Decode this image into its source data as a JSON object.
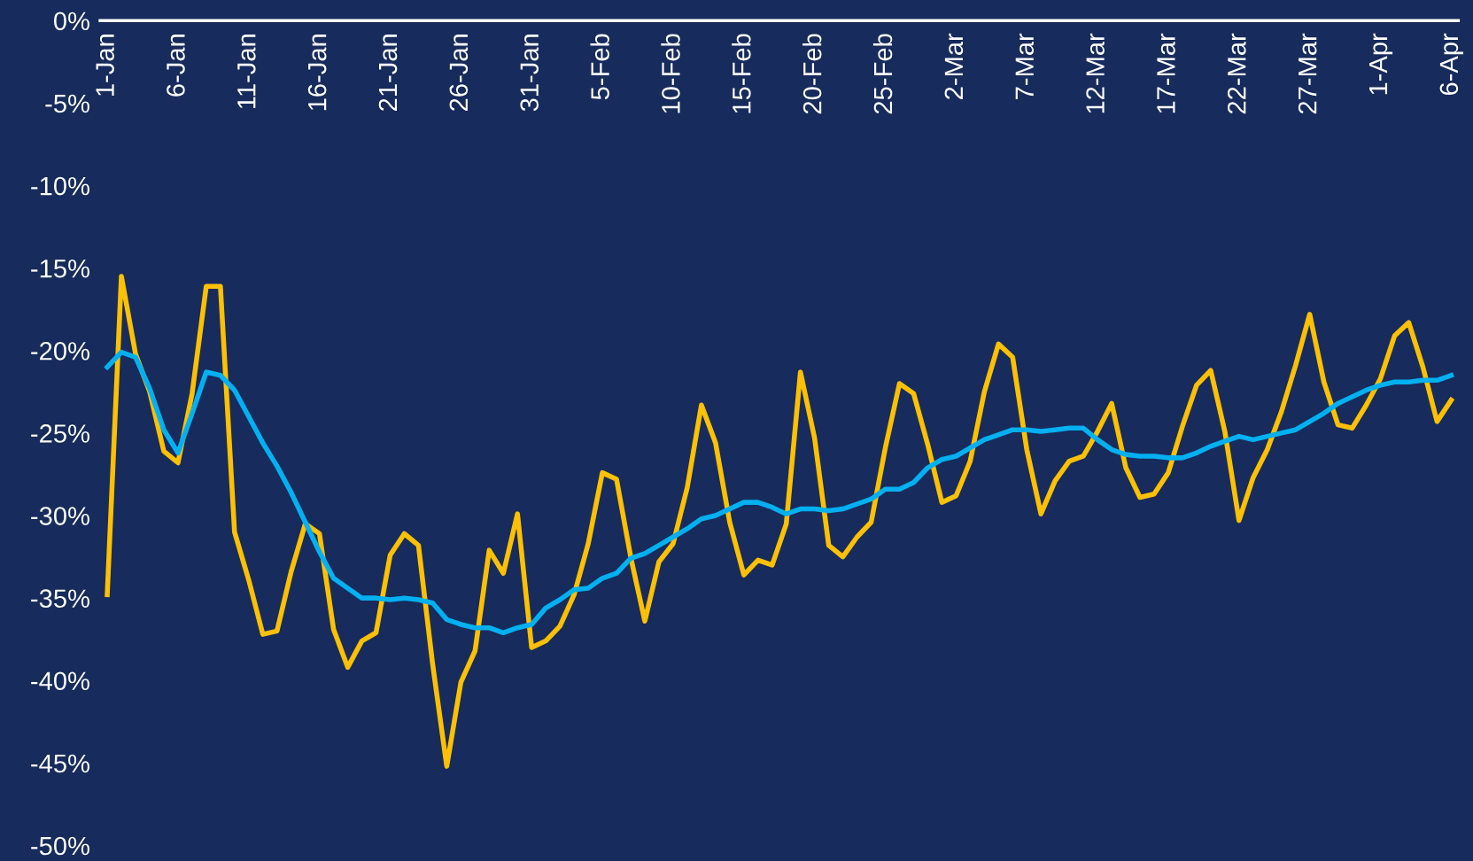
{
  "chart_data": {
    "type": "line",
    "categories": [
      "1-Jan",
      null,
      null,
      null,
      null,
      "6-Jan",
      null,
      null,
      null,
      null,
      "11-Jan",
      null,
      null,
      null,
      null,
      "16-Jan",
      null,
      null,
      null,
      null,
      "21-Jan",
      null,
      null,
      null,
      null,
      "26-Jan",
      null,
      null,
      null,
      null,
      "31-Jan",
      null,
      null,
      null,
      null,
      "5-Feb",
      null,
      null,
      null,
      null,
      "10-Feb",
      null,
      null,
      null,
      null,
      "15-Feb",
      null,
      null,
      null,
      null,
      "20-Feb",
      null,
      null,
      null,
      null,
      "25-Feb",
      null,
      null,
      null,
      null,
      "2-Mar",
      null,
      null,
      null,
      null,
      "7-Mar",
      null,
      null,
      null,
      null,
      "12-Mar",
      null,
      null,
      null,
      null,
      "17-Mar",
      null,
      null,
      null,
      null,
      "22-Mar",
      null,
      null,
      null,
      null,
      "27-Mar",
      null,
      null,
      null,
      null,
      "1-Apr",
      null,
      null,
      null,
      null,
      "6-Apr"
    ],
    "series": [
      {
        "color": "#ffc000",
        "values": [
          -34.8,
          -15.5,
          -20.2,
          -22.5,
          -26.1,
          -26.8,
          -22.6,
          -16.1,
          -16.1,
          -31.0,
          -33.9,
          -37.2,
          -37.0,
          -33.4,
          -30.5,
          -31.1,
          -36.9,
          -39.2,
          -37.6,
          -37.1,
          -32.4,
          -31.1,
          -31.8,
          -39.0,
          -45.2,
          -40.1,
          -38.2,
          -32.1,
          -33.5,
          -29.9,
          -38.0,
          -37.6,
          -36.7,
          -34.8,
          -31.7,
          -27.4,
          -27.8,
          -32.5,
          -36.4,
          -32.8,
          -31.7,
          -28.3,
          -23.3,
          -25.6,
          -30.4,
          -33.6,
          -32.7,
          -33.0,
          -30.5,
          -21.3,
          -25.3,
          -31.8,
          -32.5,
          -31.3,
          -30.4,
          -25.9,
          -22.0,
          -22.6,
          -25.7,
          -29.2,
          -28.8,
          -26.7,
          -22.5,
          -19.6,
          -20.4,
          -26.0,
          -29.9,
          -27.9,
          -26.7,
          -26.4,
          -24.9,
          -23.2,
          -27.1,
          -28.9,
          -28.7,
          -27.4,
          -24.6,
          -22.1,
          -21.2,
          -24.9,
          -30.3,
          -27.7,
          -26.0,
          -23.7,
          -20.9,
          -17.8,
          -21.9,
          -24.5,
          -24.7,
          -23.3,
          -21.7,
          -19.1,
          -18.3,
          -21.0,
          -24.3,
          -23.0
        ]
      },
      {
        "color": "#00b0f0",
        "values": [
          -21.0,
          -20.1,
          -20.4,
          -22.3,
          -24.8,
          -26.2,
          -23.8,
          -21.3,
          -21.5,
          -22.4,
          -24.0,
          -25.6,
          -27.0,
          -28.6,
          -30.4,
          -32.2,
          -33.8,
          -34.4,
          -35.0,
          -35.0,
          -35.1,
          -35.0,
          -35.1,
          -35.3,
          -36.3,
          -36.6,
          -36.8,
          -36.8,
          -37.1,
          -36.8,
          -36.6,
          -35.6,
          -35.1,
          -34.5,
          -34.4,
          -33.8,
          -33.5,
          -32.6,
          -32.3,
          -31.8,
          -31.3,
          -30.8,
          -30.2,
          -30.0,
          -29.6,
          -29.2,
          -29.2,
          -29.5,
          -29.9,
          -29.6,
          -29.6,
          -29.7,
          -29.6,
          -29.3,
          -29.0,
          -28.4,
          -28.4,
          -28.0,
          -27.1,
          -26.6,
          -26.4,
          -25.9,
          -25.4,
          -25.1,
          -24.8,
          -24.8,
          -24.9,
          -24.8,
          -24.7,
          -24.7,
          -25.4,
          -26.0,
          -26.3,
          -26.4,
          -26.4,
          -26.5,
          -26.5,
          -26.2,
          -25.8,
          -25.5,
          -25.2,
          -25.4,
          -25.2,
          -25.0,
          -24.8,
          -24.3,
          -23.8,
          -23.2,
          -22.8,
          -22.4,
          -22.1,
          -21.9,
          -21.9,
          -21.8,
          -21.8,
          -21.5
        ]
      }
    ],
    "ylim": [
      -50,
      0
    ],
    "yticks": [
      {
        "value": 0,
        "label": "0%"
      },
      {
        "value": -5,
        "label": "-5%"
      },
      {
        "value": -10,
        "label": "-10%"
      },
      {
        "value": -15,
        "label": "-15%"
      },
      {
        "value": -20,
        "label": "-20%"
      },
      {
        "value": -25,
        "label": "-25%"
      },
      {
        "value": -30,
        "label": "-30%"
      },
      {
        "value": -35,
        "label": "-35%"
      },
      {
        "value": -40,
        "label": "-40%"
      },
      {
        "value": -45,
        "label": "-45%"
      },
      {
        "value": -50,
        "label": "-50%"
      }
    ],
    "grid": false,
    "legend": false,
    "marker": "none",
    "line_style": "solid"
  }
}
